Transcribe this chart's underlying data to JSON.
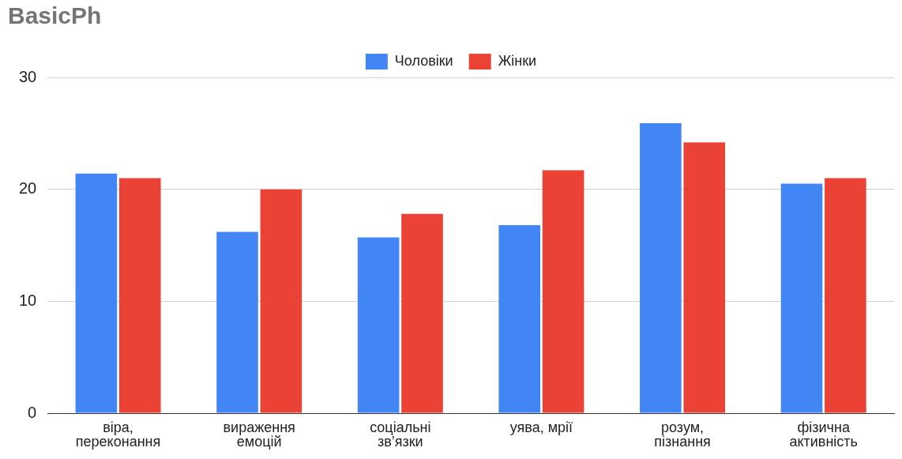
{
  "chart_data": {
    "type": "bar",
    "title": "BasicPh",
    "categories": [
      "віра,\nпереконання",
      "вираження\nемоцій",
      "соціальні\nзв’язки",
      "уява, мрії",
      "розум,\nпізнання",
      "фізична\nактивність"
    ],
    "series": [
      {
        "name": "Чоловіки",
        "color": "#4285f4",
        "values": [
          21.4,
          16.2,
          15.7,
          16.8,
          25.9,
          20.5
        ]
      },
      {
        "name": "Жінки",
        "color": "#ea4335",
        "values": [
          21.0,
          20.0,
          17.8,
          21.7,
          24.2,
          21.0
        ]
      }
    ],
    "ylim": [
      0,
      30
    ],
    "yticks": [
      0,
      10,
      20,
      30
    ],
    "grid": "y",
    "legend": "top"
  }
}
